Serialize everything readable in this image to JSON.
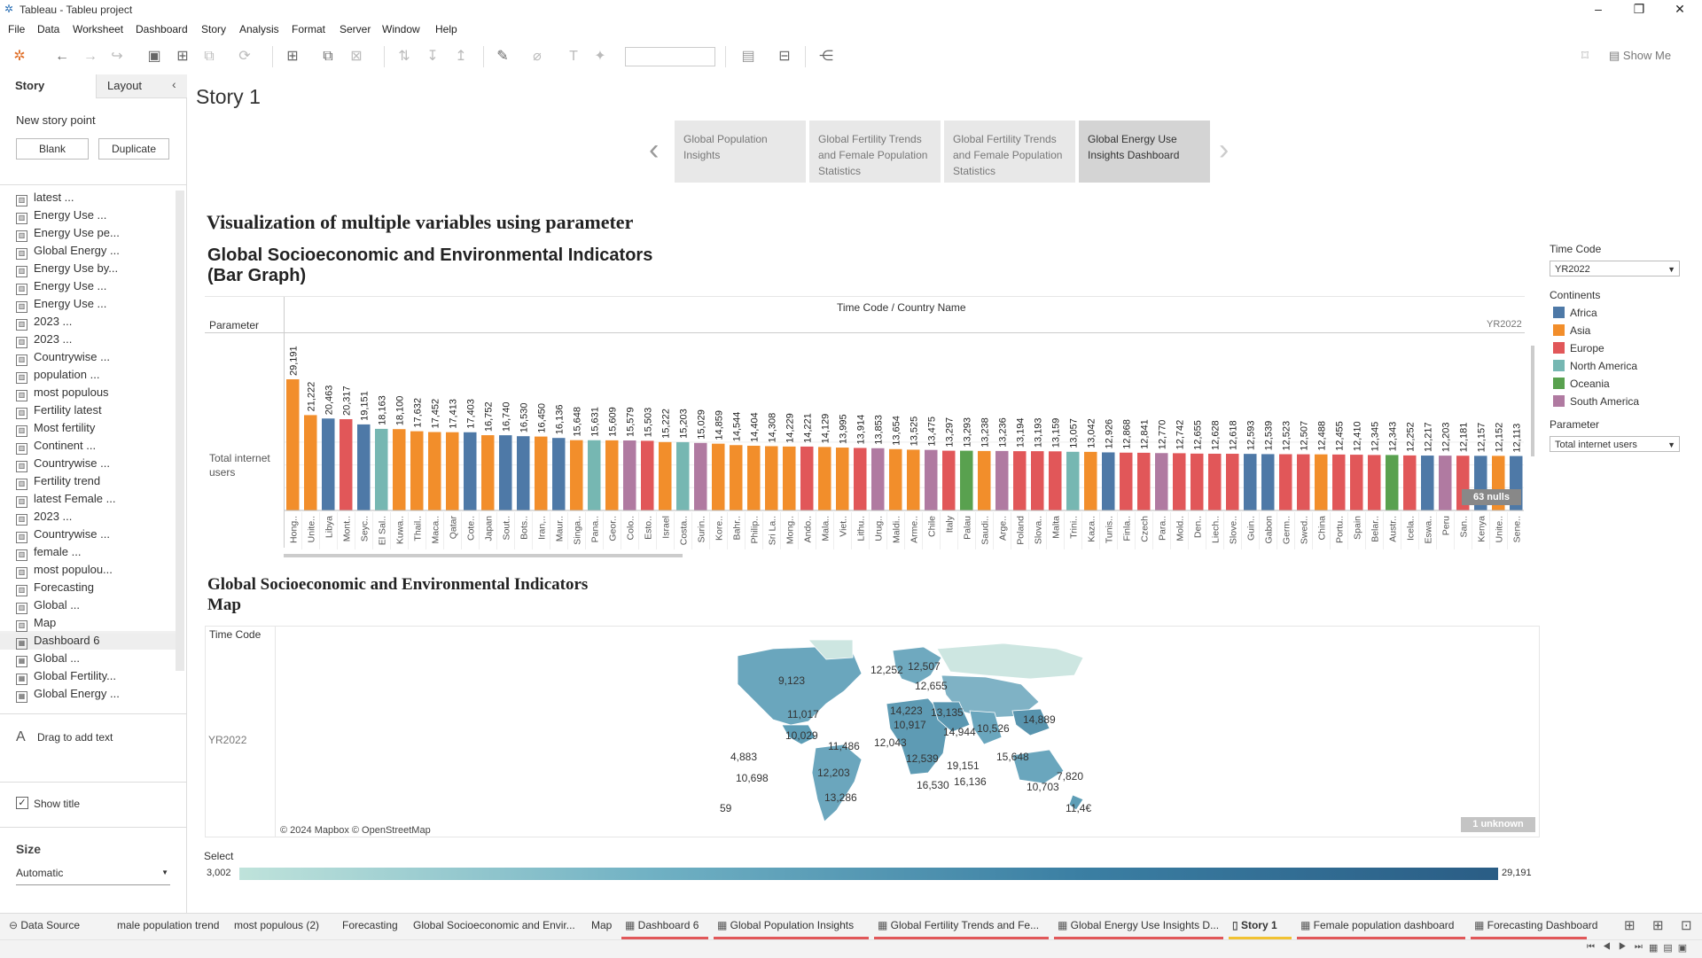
{
  "window": {
    "title": "Tableau - Tableu project"
  },
  "menu": [
    "File",
    "Data",
    "Worksheet",
    "Dashboard",
    "Story",
    "Analysis",
    "Format",
    "Server",
    "Window",
    "Help"
  ],
  "toolbar": {
    "show_me": "Show Me"
  },
  "left_pane": {
    "tabs": [
      "Story",
      "Layout"
    ],
    "new_story_point": "New story point",
    "blank_label": "Blank",
    "duplicate_label": "Duplicate",
    "sheets": [
      "latest ...",
      "Energy Use ...",
      "Energy Use pe...",
      "Global Energy ...",
      "Energy Use by...",
      "Energy Use ...",
      "Energy Use ...",
      "2023 ...",
      "2023 ...",
      "Countrywise ...",
      "population ...",
      "most populous",
      "Fertility latest",
      "Most fertility",
      "Continent ...",
      "Countrywise ...",
      "Fertility trend",
      "latest Female ...",
      "2023 ...",
      "Countrywise ...",
      "female ...",
      "most populou...",
      "Forecasting",
      "Global ...",
      "Map",
      "Dashboard 6",
      "Global ...",
      "Global Fertility...",
      "Global Energy ..."
    ],
    "drag_text": "Drag to add text",
    "show_title": "Show title",
    "size_heading": "Size",
    "size_value": "Automatic"
  },
  "story": {
    "title": "Story 1",
    "points": [
      "Global Population Insights",
      "Global Fertility Trends and Female Population Statistics",
      "Global Fertility Trends and Female Population Statistics",
      "Global Energy Use Insights Dashboard"
    ]
  },
  "dashboard": {
    "heading": "Visualization of multiple variables using parameter",
    "bar_title_1": "Global Socioeconomic and Environmental Indicators",
    "bar_title_2": "(Bar Graph)",
    "map_title_1": "Global Socioeconomic and Environmental Indicators",
    "map_title_2": "Map"
  },
  "filters": {
    "time_code_label": "Time Code",
    "time_code_value": "YR2022",
    "continents_label": "Continents",
    "continents": [
      {
        "name": "Africa",
        "color": "#4e79a7"
      },
      {
        "name": "Asia",
        "color": "#f28e2b"
      },
      {
        "name": "Europe",
        "color": "#e15759"
      },
      {
        "name": "North America",
        "color": "#76b7b2"
      },
      {
        "name": "Oceania",
        "color": "#59a14f"
      },
      {
        "name": "South America",
        "color": "#b07aa1"
      }
    ],
    "parameter_label": "Parameter",
    "parameter_value": "Total internet users"
  },
  "chart_data": {
    "type": "bar",
    "column_header": "Time Code / Country Name",
    "row_header": "Parameter",
    "row_label": "Total internet users",
    "year_label": "YR2022",
    "axis_label": "Select",
    "nulls_badge": "63 nulls",
    "categories": [
      "Hong..",
      "Unite..",
      "Libya",
      "Mont..",
      "Seyc..",
      "El Sal..",
      "Kuwa..",
      "Thail..",
      "Maca..",
      "Qatar",
      "Cote..",
      "Japan",
      "Sout..",
      "Bots..",
      "Iran,..",
      "Maur..",
      "Singa..",
      "Pana..",
      "Geor..",
      "Colo..",
      "Esto..",
      "Israel",
      "Costa..",
      "Surin..",
      "Kore..",
      "Bahr..",
      "Philip..",
      "Sri La..",
      "Mong..",
      "Ando..",
      "Mala..",
      "Viet..",
      "Lithu..",
      "Urug..",
      "Maldi..",
      "Arme..",
      "Chile",
      "Italy",
      "Palau",
      "Saudi..",
      "Arge..",
      "Poland",
      "Slova..",
      "Malta",
      "Trini..",
      "Kaza..",
      "Tunis..",
      "Finla..",
      "Czech",
      "Para..",
      "Mold..",
      "Den..",
      "Liech..",
      "Slove..",
      "Guin..",
      "Gabon",
      "Germ..",
      "Swed..",
      "China",
      "Portu..",
      "Spain",
      "Belar..",
      "Austr..",
      "Icela..",
      "Eswa..",
      "Peru",
      "San..",
      "Kenya",
      "Unite..",
      "Sene.."
    ],
    "values": [
      29191,
      21222,
      20463,
      20317,
      19151,
      18163,
      18100,
      17632,
      17452,
      17413,
      17403,
      16752,
      16740,
      16530,
      16450,
      16136,
      15648,
      15631,
      15609,
      15579,
      15503,
      15222,
      15203,
      15029,
      14859,
      14544,
      14404,
      14308,
      14229,
      14221,
      14129,
      13995,
      13914,
      13853,
      13654,
      13525,
      13475,
      13297,
      13293,
      13238,
      13236,
      13194,
      13193,
      13159,
      13057,
      13042,
      12926,
      12868,
      12841,
      12770,
      12742,
      12655,
      12628,
      12618,
      12593,
      12539,
      12523,
      12507,
      12488,
      12455,
      12410,
      12345,
      12343,
      12252,
      12217,
      12203,
      12181,
      12157,
      12152,
      12113
    ],
    "labels": [
      "29,191",
      "21,222",
      "20,463",
      "20,317",
      "19,151",
      "18,163",
      "18,100",
      "17,632",
      "17,452",
      "17,413",
      "17,403",
      "16,752",
      "16,740",
      "16,530",
      "16,450",
      "16,136",
      "15,648",
      "15,631",
      "15,609",
      "15,579",
      "15,503",
      "15,222",
      "15,203",
      "15,029",
      "14,859",
      "14,544",
      "14,404",
      "14,308",
      "14,229",
      "14,221",
      "14,129",
      "13,995",
      "13,914",
      "13,853",
      "13,654",
      "13,525",
      "13,475",
      "13,297",
      "13,293",
      "13,238",
      "13,236",
      "13,194",
      "13,193",
      "13,159",
      "13,057",
      "13,042",
      "12,926",
      "12,868",
      "12,841",
      "12,770",
      "12,742",
      "12,655",
      "12,628",
      "12,618",
      "12,593",
      "12,539",
      "12,523",
      "12,507",
      "12,488",
      "12,455",
      "12,410",
      "12,345",
      "12,343",
      "12,252",
      "12,217",
      "12,203",
      "12,181",
      "12,157",
      "12,152",
      "12,113"
    ],
    "continents": [
      "Asia",
      "Asia",
      "Africa",
      "Europe",
      "Africa",
      "North America",
      "Asia",
      "Asia",
      "Asia",
      "Asia",
      "Africa",
      "Asia",
      "Africa",
      "Africa",
      "Asia",
      "Africa",
      "Asia",
      "North America",
      "Asia",
      "South America",
      "Europe",
      "Asia",
      "North America",
      "South America",
      "Asia",
      "Asia",
      "Asia",
      "Asia",
      "Asia",
      "Europe",
      "Asia",
      "Asia",
      "Europe",
      "South America",
      "Asia",
      "Asia",
      "South America",
      "Europe",
      "Oceania",
      "Asia",
      "South America",
      "Europe",
      "Europe",
      "Europe",
      "North America",
      "Asia",
      "Africa",
      "Europe",
      "Europe",
      "South America",
      "Europe",
      "Europe",
      "Europe",
      "Europe",
      "Africa",
      "Africa",
      "Europe",
      "Europe",
      "Asia",
      "Europe",
      "Europe",
      "Europe",
      "Oceania",
      "Europe",
      "Africa",
      "South America",
      "Europe",
      "Africa",
      "Asia",
      "Africa"
    ],
    "ylim": [
      0,
      29191
    ]
  },
  "map": {
    "row_header": "Time Code",
    "row_value": "YR2022",
    "attribution": "© 2024 Mapbox © OpenStreetMap",
    "unknown_badge": "1 unknown",
    "labels": [
      "9,123",
      "12,252",
      "12,507",
      "12,655",
      "11,017",
      "14,223",
      "13,135",
      "10,029",
      "10,917",
      "14,944",
      "10,526",
      "14,889",
      "11,486",
      "12,043",
      "4,883",
      "10,698",
      "12,203",
      "12,539",
      "19,151",
      "16,530",
      "16,136",
      "15,648",
      "7,820",
      "10,703",
      "13,286",
      "59",
      "11,4€"
    ],
    "legend_title": "Select",
    "legend_min": "3,002",
    "legend_max": "29,191"
  },
  "bottom_tabs": [
    "Data Source",
    "male population trend",
    "most populous (2)",
    "Forecasting",
    "Global Socioeconomic and Envir...",
    "Map",
    "Dashboard 6",
    "Global Population Insights",
    "Global Fertility Trends and Fe...",
    "Global Energy Use Insights D...",
    "Story 1",
    "Female population dashboard",
    "Forecasting Dashboard"
  ]
}
